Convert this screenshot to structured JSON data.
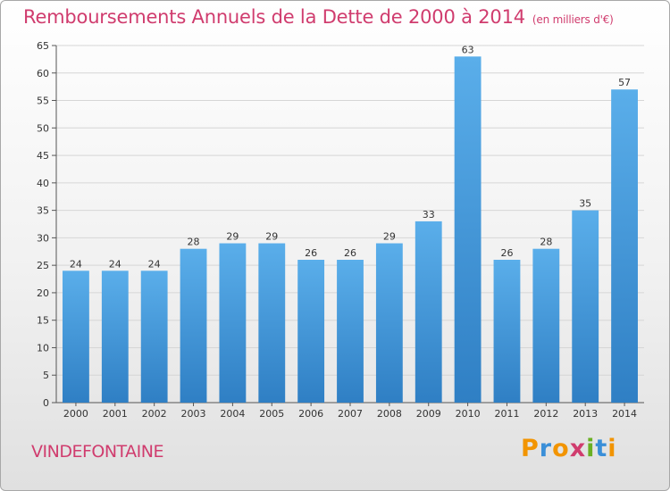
{
  "header": {
    "title": "Remboursements Annuels de la Dette de 2000 à 2014",
    "unit": "(en milliers d'€)"
  },
  "footer": {
    "commune": "VINDEFONTAINE",
    "logo_text": "Proxiti",
    "logo_letters": [
      {
        "ch": "P",
        "color": "#f29400"
      },
      {
        "ch": "r",
        "color": "#3a8fd8"
      },
      {
        "ch": "o",
        "color": "#f29400"
      },
      {
        "ch": "x",
        "color": "#d03c6e"
      },
      {
        "ch": "i",
        "color": "#6ab023"
      },
      {
        "ch": "t",
        "color": "#3a8fd8"
      },
      {
        "ch": "i",
        "color": "#f29400"
      }
    ]
  },
  "chart_data": {
    "type": "bar",
    "categories": [
      "2000",
      "2001",
      "2002",
      "2003",
      "2004",
      "2005",
      "2006",
      "2007",
      "2008",
      "2009",
      "2010",
      "2011",
      "2012",
      "2013",
      "2014"
    ],
    "values": [
      24,
      24,
      24,
      28,
      29,
      29,
      26,
      26,
      29,
      33,
      63,
      26,
      28,
      35,
      57
    ],
    "title": "Remboursements Annuels de la Dette de 2000 à 2014",
    "xlabel": "",
    "ylabel": "",
    "ylim": [
      0,
      65
    ],
    "yticks": [
      0,
      5,
      10,
      15,
      20,
      25,
      30,
      35,
      40,
      45,
      50,
      55,
      60,
      65
    ],
    "grid": true,
    "bar_color_top": "#5aaeea",
    "bar_color_bottom": "#2f7fc4"
  }
}
